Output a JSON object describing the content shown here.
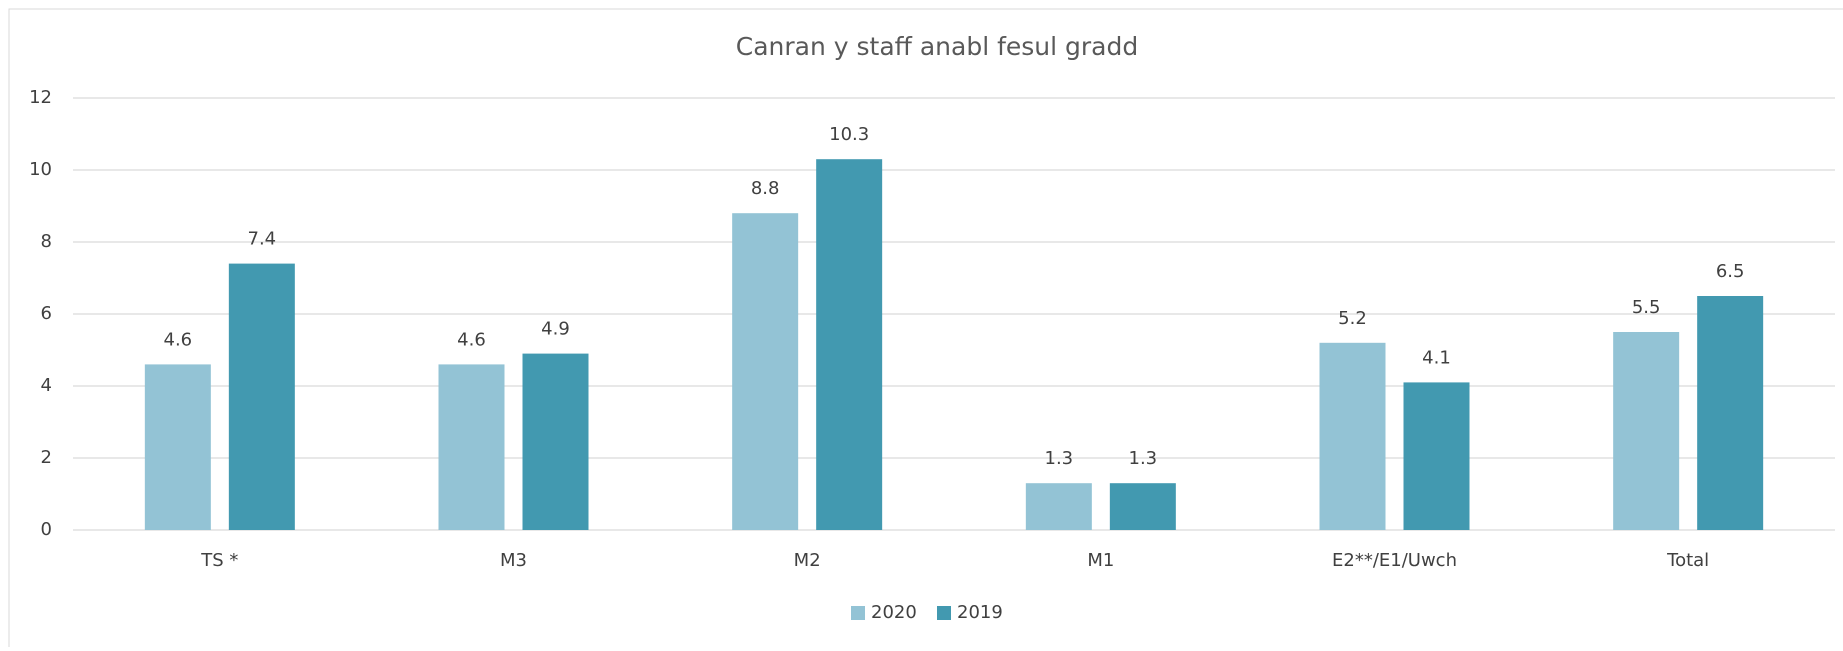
{
  "chart_data": {
    "type": "bar",
    "title": "Canran y staff anabl fesul gradd",
    "categories": [
      "TS *",
      "M3",
      "M2",
      "M1",
      "E2**/E1/Uwch",
      "Total"
    ],
    "series": [
      {
        "name": "2020",
        "color": "#93c3d5",
        "values": [
          4.6,
          4.6,
          8.8,
          1.3,
          5.2,
          5.5
        ]
      },
      {
        "name": "2019",
        "color": "#4299b0",
        "values": [
          7.4,
          4.9,
          10.3,
          1.3,
          4.1,
          6.5
        ]
      }
    ],
    "ylim": [
      0,
      12
    ],
    "yticks": [
      0,
      2,
      4,
      6,
      8,
      10,
      12
    ],
    "grid": true,
    "legend": "bottom"
  }
}
